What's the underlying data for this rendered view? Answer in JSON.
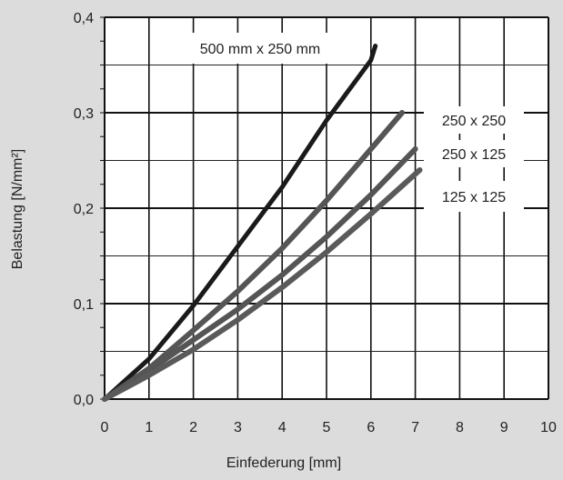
{
  "chart_data": {
    "type": "line",
    "xlabel": "Einfederung  [mm]",
    "ylabel": "Belastung  [N/mm²]",
    "xlim": [
      0,
      10
    ],
    "ylim": [
      0,
      0.4
    ],
    "x_ticks": [
      "0",
      "1",
      "2",
      "3",
      "4",
      "5",
      "6",
      "7",
      "8",
      "9",
      "10"
    ],
    "y_ticks": [
      "0,0",
      "0,1",
      "0,2",
      "0,3",
      "0,4"
    ],
    "grid": true,
    "background": "#dcdcdc",
    "plot_background": "#ffffff",
    "series": [
      {
        "name": "500 mm x 250 mm",
        "color": "#1a1a1a",
        "x": [
          0,
          1,
          2,
          3,
          4,
          5,
          6,
          6.1
        ],
        "y": [
          0,
          0.042,
          0.098,
          0.16,
          0.222,
          0.292,
          0.355,
          0.37
        ]
      },
      {
        "name": "250 x 250",
        "color": "#555555",
        "x": [
          0,
          1,
          2,
          3,
          4,
          5,
          6,
          6.7
        ],
        "y": [
          0,
          0.032,
          0.072,
          0.113,
          0.158,
          0.208,
          0.262,
          0.3
        ]
      },
      {
        "name": "250 x 125",
        "color": "#555555",
        "x": [
          0,
          1,
          2,
          3,
          4,
          5,
          6,
          7
        ],
        "y": [
          0,
          0.03,
          0.062,
          0.094,
          0.13,
          0.17,
          0.214,
          0.262
        ]
      },
      {
        "name": "125 x 125",
        "color": "#5a5a5a",
        "x": [
          0,
          1,
          2,
          3,
          4,
          5,
          6,
          7.1
        ],
        "y": [
          0,
          0.025,
          0.052,
          0.083,
          0.117,
          0.154,
          0.194,
          0.24
        ]
      }
    ]
  }
}
